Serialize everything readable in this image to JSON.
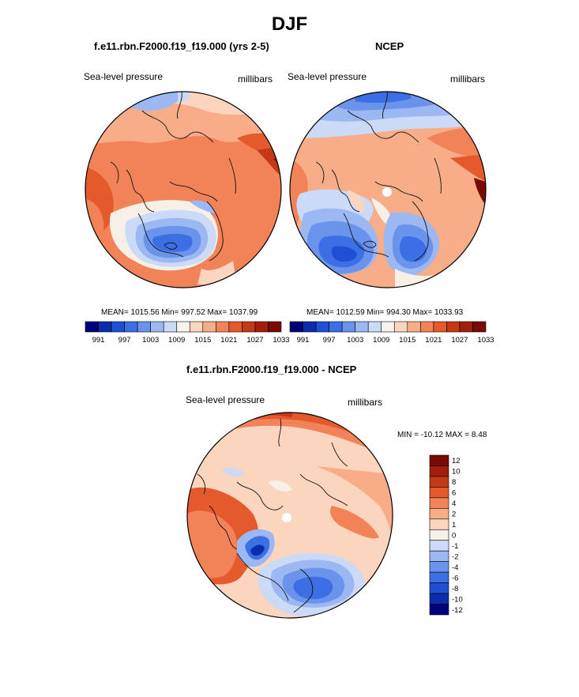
{
  "figure_title": "DJF",
  "panel_model": {
    "title": "f.e11.rbn.F2000.f19_f19.000 (yrs 2-5)",
    "left_label": "Sea-level pressure",
    "right_label": "millibars",
    "stats": "MEAN= 1015.56  Min= 997.52  Max= 1037.99"
  },
  "panel_obs": {
    "title": "NCEP",
    "left_label": "Sea-level pressure",
    "right_label": "millibars",
    "stats": "MEAN= 1012.59  Min= 994.30  Max= 1033.93"
  },
  "panel_diff": {
    "title": "f.e11.rbn.F2000.f19_f19.000 - NCEP",
    "left_label": "Sea-level pressure",
    "right_label": "millibars",
    "stats": "MIN = -10.12 MAX =   8.48"
  },
  "colorbar_slp": {
    "colors": [
      "#00007a",
      "#0c2cae",
      "#1f4fd4",
      "#3b6fe3",
      "#6a93ec",
      "#9cb8f2",
      "#cbdaf7",
      "#f5f3ec",
      "#fbd5bd",
      "#f7ad88",
      "#f28358",
      "#e45a2c",
      "#c53a16",
      "#a2200b",
      "#7b0a02"
    ],
    "labels": [
      "991",
      "997",
      "1003",
      "1009",
      "1015",
      "1021",
      "1027",
      "1033"
    ]
  },
  "colorbar_diff": {
    "colors": [
      "#00007a",
      "#0c2cae",
      "#1f4fd4",
      "#3b6fe3",
      "#6a93ec",
      "#9cb8f2",
      "#cbdaf7",
      "#f7f0e6",
      "#fbd5bd",
      "#f7ad88",
      "#f28358",
      "#e45a2c",
      "#c53a16",
      "#a2200b",
      "#7b0a02"
    ],
    "labels": [
      "12",
      "10",
      "8",
      "6",
      "4",
      "2",
      "1",
      "0",
      "-1",
      "-2",
      "-4",
      "-6",
      "-8",
      "-10",
      "-12"
    ]
  }
}
